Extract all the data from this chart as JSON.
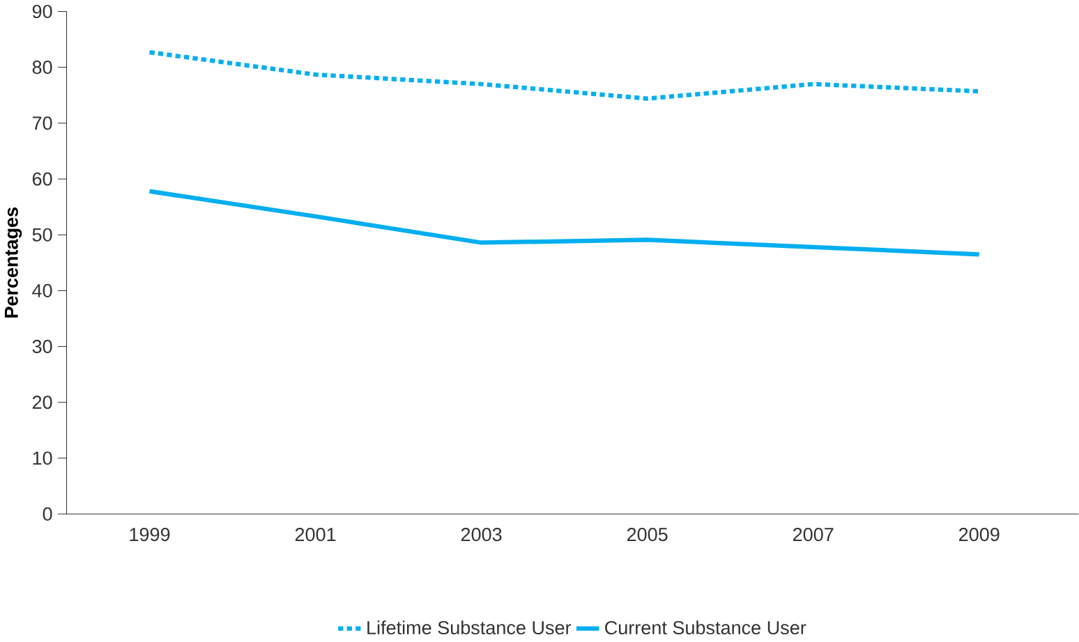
{
  "chart_data": {
    "type": "line",
    "ylabel": "Percentages",
    "categories": [
      "1999",
      "2001",
      "2003",
      "2005",
      "2007",
      "2009"
    ],
    "series": [
      {
        "name": "Lifetime Substance User",
        "color": "#00aeef",
        "line_style": "dotted",
        "values": [
          82.7,
          78.7,
          77,
          74.4,
          77,
          75.7
        ]
      },
      {
        "name": "Current Substance User",
        "color": "#00aeef",
        "line_style": "solid",
        "values": [
          57.8,
          53.3,
          48.6,
          49.1,
          47.8,
          46.5
        ]
      }
    ],
    "ylim": [
      0,
      90
    ],
    "yticks": [
      0,
      10,
      20,
      30,
      40,
      50,
      60,
      70,
      80,
      90
    ],
    "grid": false,
    "legend": "bottom",
    "marker": "none"
  }
}
